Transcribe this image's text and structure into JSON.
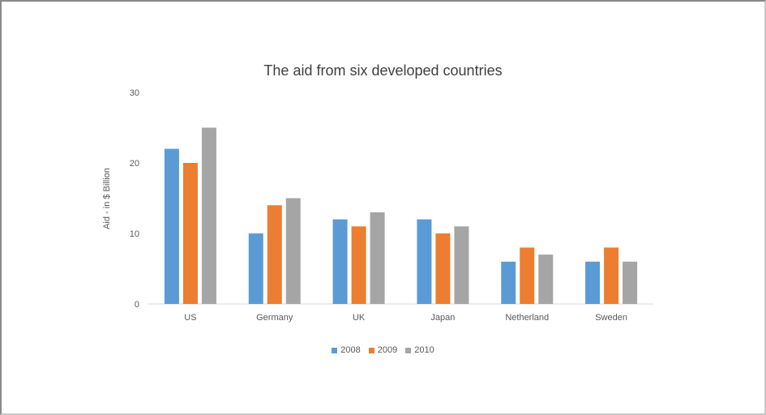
{
  "chart_data": {
    "type": "bar",
    "title": "The aid from six developed countries",
    "xlabel": "",
    "ylabel": "Aid - in $ Billion",
    "ylim": [
      0,
      30
    ],
    "yticks": [
      0,
      10,
      20,
      30
    ],
    "grid": false,
    "legend_position": "bottom",
    "categories": [
      "US",
      "Germany",
      "UK",
      "Japan",
      "Netherland",
      "Sweden"
    ],
    "series": [
      {
        "name": "2008",
        "color": "#5b9bd5",
        "values": [
          22,
          10,
          12,
          12,
          6,
          6
        ]
      },
      {
        "name": "2009",
        "color": "#ed7d31",
        "values": [
          20,
          14,
          11,
          10,
          8,
          8
        ]
      },
      {
        "name": "2010",
        "color": "#a5a5a5",
        "values": [
          25,
          15,
          13,
          11,
          7,
          6
        ]
      }
    ]
  }
}
